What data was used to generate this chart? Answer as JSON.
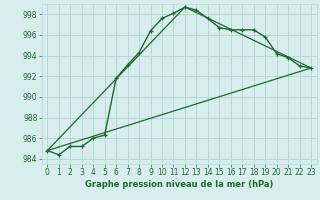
{
  "title": "Graphe pression niveau de la mer (hPa)",
  "background_color": "#d8eeee",
  "grid_color": "#b8d8d8",
  "line_color": "#1a6b2a",
  "xlim": [
    -0.5,
    23.5
  ],
  "ylim": [
    983.5,
    999.0
  ],
  "yticks": [
    984,
    986,
    988,
    990,
    992,
    994,
    996,
    998
  ],
  "xticks": [
    0,
    1,
    2,
    3,
    4,
    5,
    6,
    7,
    8,
    9,
    10,
    11,
    12,
    13,
    14,
    15,
    16,
    17,
    18,
    19,
    20,
    21,
    22,
    23
  ],
  "series1_x": [
    0,
    1,
    2,
    3,
    4,
    5,
    6,
    7,
    8,
    9,
    10,
    11,
    12,
    13,
    14,
    15,
    16,
    17,
    18,
    19,
    20,
    21,
    22,
    23
  ],
  "series1_y": [
    984.8,
    984.4,
    985.2,
    985.2,
    986.0,
    986.3,
    991.8,
    993.1,
    994.3,
    996.4,
    997.6,
    998.1,
    998.7,
    998.4,
    997.6,
    996.7,
    996.5,
    996.5,
    996.5,
    995.8,
    994.2,
    993.8,
    993.0,
    992.8
  ],
  "series2_x": [
    0,
    12,
    23
  ],
  "series2_y": [
    984.8,
    998.7,
    992.8
  ],
  "series3_x": [
    0,
    23
  ],
  "series3_y": [
    984.8,
    992.8
  ]
}
